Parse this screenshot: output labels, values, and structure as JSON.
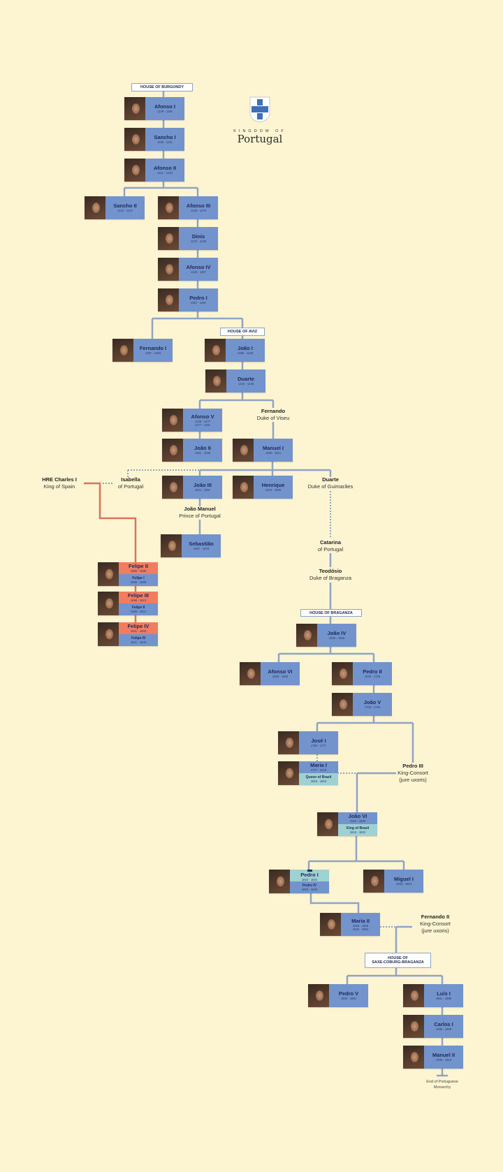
{
  "colors": {
    "background": "#fdf4d2",
    "blue": "#7393cc",
    "red": "#f27c60",
    "teal": "#9fd0d2",
    "line": "#8fa3c3",
    "habsburg_line": "#d9735b"
  },
  "logo": {
    "kingdom_of": "KINGDOM OF",
    "portugal": "Portugal",
    "icon": "portuguese-shield-icon"
  },
  "houses": {
    "burgundy": "HOUSE OF BURGUNDY",
    "aviz": "HOUSE OF AVIZ",
    "braganza": "HOUSE OF BRAGANZA",
    "saxe_line1": "HOUSE OF",
    "saxe_line2": "SAXE-COBURG-BRAGANZA"
  },
  "monarchs": [
    {
      "name": "Afonso I",
      "reign": [
        "1139 - 1185"
      ],
      "color": "blue"
    },
    {
      "name": "Sancho I",
      "reign": [
        "1185 - 1211"
      ],
      "color": "blue"
    },
    {
      "name": "Afonso II",
      "reign": [
        "1211 - 1223"
      ],
      "color": "blue"
    },
    {
      "name": "Sancho II",
      "reign": [
        "1223 - 1247"
      ],
      "color": "blue"
    },
    {
      "name": "Afonso III",
      "reign": [
        "1248 - 1279"
      ],
      "color": "blue"
    },
    {
      "name": "Dinis",
      "reign": [
        "1279 - 1325"
      ],
      "color": "blue"
    },
    {
      "name": "Afonso IV",
      "reign": [
        "1325 - 1357"
      ],
      "color": "blue"
    },
    {
      "name": "Pedro I",
      "reign": [
        "1357 - 1367"
      ],
      "color": "blue"
    },
    {
      "name": "Fernando I",
      "reign": [
        "1367 - 1383"
      ],
      "color": "blue"
    },
    {
      "name": "João I",
      "reign": [
        "1385 - 1433"
      ],
      "color": "blue"
    },
    {
      "name": "Duarte",
      "reign": [
        "1433 - 1438"
      ],
      "color": "blue"
    },
    {
      "name": "Afonso V",
      "reign": [
        "1438 - 1477",
        "1477 - 1481"
      ],
      "color": "blue"
    },
    {
      "name": "João II",
      "reign": [
        "1481 - 1495"
      ],
      "color": "blue"
    },
    {
      "name": "Manuel I",
      "reign": [
        "1495 - 1521"
      ],
      "color": "blue"
    },
    {
      "name": "João III",
      "reign": [
        "1521 - 1557"
      ],
      "color": "blue"
    },
    {
      "name": "Henrique",
      "reign": [
        "1578 - 1580"
      ],
      "color": "blue"
    },
    {
      "name": "Sebastião",
      "reign": [
        "1557 - 1578"
      ],
      "color": "blue"
    },
    {
      "name": "Felipe II",
      "reign": [
        "1580 - 1598"
      ],
      "color": "red",
      "secondary": {
        "name": "Felipe I",
        "reign": "1580 - 1598",
        "color": "blue"
      }
    },
    {
      "name": "Felipe III",
      "reign": [
        "1598 - 1621"
      ],
      "color": "red",
      "secondary": {
        "name": "Felipe II",
        "reign": "1598 - 1621",
        "color": "blue"
      }
    },
    {
      "name": "Felipe IV",
      "reign": [
        "1621 - 1640"
      ],
      "color": "red",
      "secondary": {
        "name": "Felipe III",
        "reign": "1621 - 1640",
        "color": "blue"
      }
    },
    {
      "name": "João IV",
      "reign": [
        "1640 - 1656"
      ],
      "color": "blue"
    },
    {
      "name": "Afonso VI",
      "reign": [
        "1656 - 1683"
      ],
      "color": "blue"
    },
    {
      "name": "Pedro II",
      "reign": [
        "1683 - 1706"
      ],
      "color": "blue"
    },
    {
      "name": "João V",
      "reign": [
        "1706 - 1750"
      ],
      "color": "blue"
    },
    {
      "name": "José I",
      "reign": [
        "1750 - 1777"
      ],
      "color": "blue"
    },
    {
      "name": "Maria I",
      "reign": [
        "1777 - 1816"
      ],
      "color": "blue",
      "secondary": {
        "name": "Queen of Brazil",
        "reign": "1815 - 1816",
        "color": "teal"
      }
    },
    {
      "name": "João VI",
      "reign": [
        "1816 - 1826"
      ],
      "color": "blue",
      "secondary": {
        "name": "King of Brazil",
        "reign": "1816 - 1822",
        "color": "teal"
      }
    },
    {
      "name": "Pedro I",
      "reign": [
        "1822 - 1831"
      ],
      "color": "teal",
      "crown": true,
      "secondary": {
        "name": "Pedro IV",
        "reign": "1826 - 1826",
        "color": "blue"
      }
    },
    {
      "name": "Miguel I",
      "reign": [
        "1828 - 1834"
      ],
      "color": "blue"
    },
    {
      "name": "Maria II",
      "reign": [
        "1826 - 1828",
        "1834 - 1853"
      ],
      "color": "blue"
    },
    {
      "name": "Pedro V",
      "reign": [
        "1853 - 1861"
      ],
      "color": "blue"
    },
    {
      "name": "Luís I",
      "reign": [
        "1861 - 1889"
      ],
      "color": "blue"
    },
    {
      "name": "Carlos I",
      "reign": [
        "1889 - 1908"
      ],
      "color": "blue"
    },
    {
      "name": "Manuel II",
      "reign": [
        "1908 - 1910"
      ],
      "color": "blue"
    }
  ],
  "notes": {
    "fernando_viseu": {
      "name": "Fernando",
      "title": "Duke of Viseu"
    },
    "charles": {
      "name": "HRE Charles I",
      "title": "King of Spain"
    },
    "isabella": {
      "name": "Isabella",
      "title": "of Portugal"
    },
    "duarte_guimaraes": {
      "name": "Duarte",
      "title": "Duke of Guimarães"
    },
    "joao_manuel": {
      "name": "João Manuel",
      "title": "Prince of Portugal"
    },
    "catarina": {
      "name": "Catarina",
      "title": "of Portugal"
    },
    "teodosio": {
      "name": "Teodósio",
      "title": "Duke of Braganza"
    },
    "pedro_iii": {
      "name": "Pedro III",
      "title": "King-Consort",
      "title2": "(jure uxoris)"
    },
    "fernando_ii": {
      "name": "Fernando II",
      "title": "King-Consort",
      "title2": "(jure uxoris)"
    },
    "end": {
      "line1": "End of Portuguese",
      "line2": "Monarchy"
    }
  }
}
